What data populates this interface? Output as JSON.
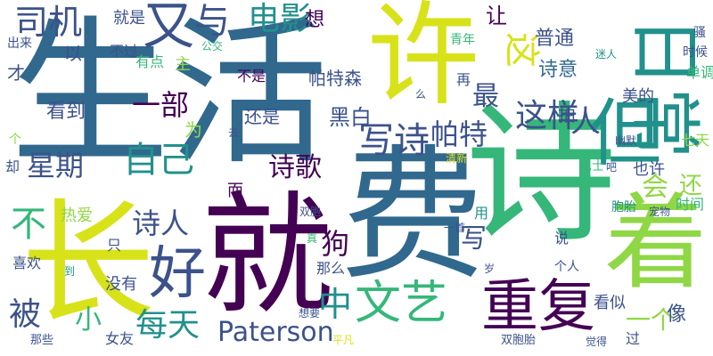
{
  "palette": {
    "purple": "#440154",
    "indigo": "#3b528b",
    "blue": "#31688e",
    "teal": "#21918c",
    "green": "#35b779",
    "lime": "#8fd744",
    "yellow": "#d8e219"
  },
  "words": [
    {
      "text": "生活",
      "color": "blue"
    },
    {
      "text": "诗",
      "color": "green"
    },
    {
      "text": "就",
      "color": "purple"
    },
    {
      "text": "费",
      "color": "blue"
    },
    {
      "text": "许",
      "color": "yellow"
    },
    {
      "text": "长",
      "color": "yellow"
    },
    {
      "text": "日常",
      "color": "teal"
    },
    {
      "text": "着",
      "color": "lime"
    },
    {
      "text": "但",
      "color": "teal"
    },
    {
      "text": "重复",
      "color": "purple"
    },
    {
      "text": "好",
      "color": "indigo"
    },
    {
      "text": "文艺",
      "color": "green"
    },
    {
      "text": "又",
      "color": "indigo"
    },
    {
      "text": "电影",
      "color": "teal"
    },
    {
      "text": "司机",
      "color": "indigo"
    },
    {
      "text": "与",
      "color": "indigo"
    },
    {
      "text": "这",
      "color": "yellow"
    },
    {
      "text": "星期",
      "color": "indigo"
    },
    {
      "text": "自己",
      "color": "teal"
    },
    {
      "text": "写诗",
      "color": "indigo"
    },
    {
      "text": "这样",
      "color": "indigo"
    },
    {
      "text": "帕特",
      "color": "indigo"
    },
    {
      "text": "最",
      "color": "indigo"
    },
    {
      "text": "诗歌",
      "color": "purple"
    },
    {
      "text": "Paterson",
      "color": "indigo"
    },
    {
      "text": "每天",
      "color": "teal"
    },
    {
      "text": "被",
      "color": "indigo"
    },
    {
      "text": "中",
      "color": "teal"
    },
    {
      "text": "一部",
      "color": "purple"
    },
    {
      "text": "狗",
      "color": "purple"
    },
    {
      "text": "诗人",
      "color": "indigo"
    },
    {
      "text": "会",
      "color": "lime"
    },
    {
      "text": "还",
      "color": "lime"
    },
    {
      "text": "人",
      "color": "indigo"
    },
    {
      "text": "拍",
      "color": "indigo"
    },
    {
      "text": "不",
      "color": "green"
    },
    {
      "text": "小",
      "color": "green"
    },
    {
      "text": "黑白",
      "color": "indigo"
    },
    {
      "text": "帕特森",
      "color": "indigo"
    },
    {
      "text": "普通",
      "color": "indigo"
    },
    {
      "text": "诗意",
      "color": "blue"
    },
    {
      "text": "让",
      "color": "purple"
    },
    {
      "text": "就是",
      "color": "indigo"
    },
    {
      "text": "想",
      "color": "purple"
    },
    {
      "text": "不过",
      "color": "indigo"
    },
    {
      "text": "以",
      "color": "indigo"
    },
    {
      "text": "才",
      "color": "indigo"
    },
    {
      "text": "出来",
      "color": "indigo"
    },
    {
      "text": "有点",
      "color": "green"
    },
    {
      "text": "主",
      "color": "lime"
    },
    {
      "text": "公交",
      "color": "green"
    },
    {
      "text": "不是",
      "color": "purple"
    },
    {
      "text": "看到",
      "color": "indigo"
    },
    {
      "text": "还是",
      "color": "indigo"
    },
    {
      "text": "为",
      "color": "lime"
    },
    {
      "text": "青年",
      "color": "green"
    },
    {
      "text": "再",
      "color": "indigo"
    },
    {
      "text": "迷人",
      "color": "teal"
    },
    {
      "text": "时候",
      "color": "indigo"
    },
    {
      "text": "骚",
      "color": "indigo"
    },
    {
      "text": "美的",
      "color": "indigo"
    },
    {
      "text": "单调",
      "color": "green"
    },
    {
      "text": "么",
      "color": "indigo"
    },
    {
      "text": "去",
      "color": "indigo"
    },
    {
      "text": "幽默",
      "color": "indigo"
    },
    {
      "text": "清新",
      "color": "yellow"
    },
    {
      "text": "个",
      "color": "lime"
    },
    {
      "text": "却",
      "color": "indigo"
    },
    {
      "text": "而",
      "color": "purple"
    },
    {
      "text": "巴士",
      "color": "green"
    },
    {
      "text": "吧",
      "color": "indigo"
    },
    {
      "text": "也许",
      "color": "indigo"
    },
    {
      "text": "七天",
      "color": "lime"
    },
    {
      "text": "热爱",
      "color": "lime"
    },
    {
      "text": "双胞",
      "color": "indigo"
    },
    {
      "text": "用",
      "color": "teal"
    },
    {
      "text": "胞胎",
      "color": "teal"
    },
    {
      "text": "时间",
      "color": "green"
    },
    {
      "text": "宠物",
      "color": "indigo"
    },
    {
      "text": "只",
      "color": "indigo"
    },
    {
      "text": "真",
      "color": "green"
    },
    {
      "text": "一首",
      "color": "indigo"
    },
    {
      "text": "写",
      "color": "indigo"
    },
    {
      "text": "说",
      "color": "indigo"
    },
    {
      "text": "那么",
      "color": "indigo"
    },
    {
      "text": "岁",
      "color": "indigo"
    },
    {
      "text": "个人",
      "color": "indigo"
    },
    {
      "text": "喜欢",
      "color": "indigo"
    },
    {
      "text": "到",
      "color": "teal"
    },
    {
      "text": "没有",
      "color": "indigo"
    },
    {
      "text": "看似",
      "color": "indigo"
    },
    {
      "text": "一个",
      "color": "lime"
    },
    {
      "text": "像",
      "color": "indigo"
    },
    {
      "text": "女友",
      "color": "indigo"
    },
    {
      "text": "那些",
      "color": "indigo"
    },
    {
      "text": "想要",
      "color": "indigo"
    },
    {
      "text": "平凡",
      "color": "yellow"
    },
    {
      "text": "双胞胎",
      "color": "indigo"
    },
    {
      "text": "觉得",
      "color": "indigo"
    },
    {
      "text": "过",
      "color": "indigo"
    }
  ]
}
